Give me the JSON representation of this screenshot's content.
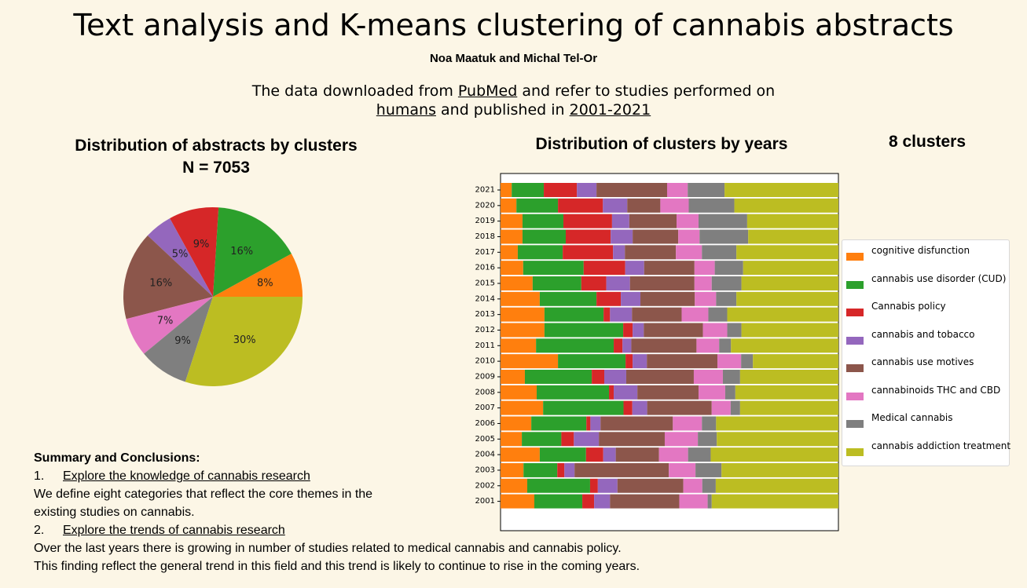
{
  "header": {
    "title": "Text analysis and K-means clustering of cannabis abstracts",
    "authors": "Noa Maatuk and Michal Tel-Or",
    "intro_prefix": "The data downloaded from ",
    "intro_link1": "PubMed",
    "intro_mid1": " and refer to studies performed on",
    "intro_link2": "humans",
    "intro_mid2": " and published in ",
    "intro_link3": "2001-2021"
  },
  "pie_panel": {
    "title": "Distribution of abstracts by clusters",
    "subtitle": "N = 7053"
  },
  "bar_panel": {
    "title": "Distribution of clusters by years",
    "clusters_label": "8 clusters"
  },
  "legend": {
    "items": [
      {
        "label": "cognitive disfunction",
        "color": "#ff7f0e"
      },
      {
        "label": "cannabis use disorder (CUD)",
        "color": "#2ca02c"
      },
      {
        "label": "Cannabis policy",
        "color": "#d62728"
      },
      {
        "label": "cannabis and tobacco",
        "color": "#9467bd"
      },
      {
        "label": "cannabis use motives",
        "color": "#8c564b"
      },
      {
        "label": "cannabinoids THC and CBD",
        "color": "#e377c2"
      },
      {
        "label": "Medical cannabis",
        "color": "#7f7f7f"
      },
      {
        "label": "cannabis addiction treatment",
        "color": "#bcbd22"
      }
    ]
  },
  "chart_data": [
    {
      "type": "pie",
      "start_angle_deg": 0,
      "direction": "counterclockwise",
      "slices": [
        {
          "label": "8%",
          "value": 8,
          "color": "#ff7f0e"
        },
        {
          "label": "16%",
          "value": 16,
          "color": "#2ca02c"
        },
        {
          "label": "9%",
          "value": 9,
          "color": "#d62728"
        },
        {
          "label": "5%",
          "value": 5,
          "color": "#9467bd"
        },
        {
          "label": "16%",
          "value": 16,
          "color": "#8c564b"
        },
        {
          "label": "7%",
          "value": 7,
          "color": "#e377c2"
        },
        {
          "label": "9%",
          "value": 9,
          "color": "#7f7f7f"
        },
        {
          "label": "30%",
          "value": 30,
          "color": "#bcbd22"
        }
      ]
    },
    {
      "type": "bar",
      "orientation": "horizontal",
      "stacked": true,
      "normalized": true,
      "categories": [
        "2021",
        "2020",
        "2019",
        "2018",
        "2017",
        "2016",
        "2015",
        "2014",
        "2013",
        "2012",
        "2011",
        "2010",
        "2009",
        "2008",
        "2007",
        "2006",
        "2005",
        "2004",
        "2003",
        "2002",
        "2001"
      ],
      "series": [
        {
          "name": "cognitive disfunction",
          "color": "#ff7f0e",
          "values": [
            3.3,
            4.7,
            6.5,
            6.5,
            5.1,
            6.7,
            9.5,
            11.6,
            13.0,
            13.0,
            10.5,
            17.0,
            7.2,
            10.7,
            12.6,
            9.1,
            6.3,
            11.6,
            6.8,
            7.9,
            10.0
          ]
        },
        {
          "name": "cannabis use disorder (CUD)",
          "color": "#2ca02c",
          "values": [
            9.5,
            12.3,
            12.1,
            12.8,
            13.3,
            17.9,
            14.4,
            16.8,
            17.5,
            23.3,
            23.0,
            20.0,
            19.8,
            21.4,
            23.8,
            16.3,
            11.7,
            13.7,
            10.0,
            18.6,
            14.2
          ]
        },
        {
          "name": "Cannabis policy",
          "color": "#d62728",
          "values": [
            9.8,
            13.3,
            14.4,
            13.3,
            14.9,
            12.3,
            7.4,
            7.2,
            1.9,
            2.8,
            2.6,
            2.1,
            3.7,
            1.4,
            2.6,
            1.2,
            3.7,
            5.1,
            2.1,
            2.3,
            3.5
          ]
        },
        {
          "name": "cannabis and tobacco",
          "color": "#9467bd",
          "values": [
            5.8,
            7.2,
            5.1,
            6.5,
            3.5,
            5.6,
            7.0,
            5.8,
            6.5,
            3.3,
            2.6,
            4.2,
            6.5,
            7.0,
            4.4,
            3.0,
            7.4,
            3.7,
            3.0,
            5.8,
            4.7
          ]
        },
        {
          "name": "cannabis use motives",
          "color": "#8c564b",
          "values": [
            20.9,
            9.8,
            14.0,
            13.5,
            15.1,
            14.9,
            19.1,
            16.1,
            14.7,
            17.5,
            19.3,
            20.9,
            20.0,
            18.1,
            19.1,
            21.4,
            19.5,
            12.8,
            27.9,
            19.5,
            20.5
          ]
        },
        {
          "name": "cannabinoids THC and CBD",
          "color": "#e377c2",
          "values": [
            6.1,
            8.4,
            6.5,
            6.3,
            7.7,
            6.0,
            5.1,
            6.3,
            7.9,
            7.2,
            6.7,
            7.0,
            8.6,
            7.9,
            5.6,
            8.6,
            9.8,
            8.6,
            7.9,
            5.6,
            8.4
          ]
        },
        {
          "name": "Medical cannabis",
          "color": "#7f7f7f",
          "values": [
            10.9,
            13.5,
            14.4,
            14.4,
            10.2,
            8.4,
            8.8,
            6.0,
            5.6,
            4.2,
            3.5,
            3.5,
            5.1,
            3.0,
            2.8,
            4.2,
            5.6,
            6.7,
            7.7,
            4.0,
            1.2
          ]
        },
        {
          "name": "cannabis addiction treatment",
          "color": "#bcbd22",
          "values": [
            33.7,
            30.8,
            27.0,
            26.7,
            30.2,
            28.2,
            28.7,
            30.2,
            32.9,
            28.7,
            31.8,
            25.3,
            29.1,
            30.5,
            29.1,
            36.2,
            36.0,
            37.8,
            34.6,
            36.3,
            37.5
          ]
        }
      ],
      "xlim": [
        0,
        100
      ]
    }
  ],
  "summary": {
    "heading": "Summary and Conclusions:",
    "item1_num": "1.",
    "item1_title": "Explore the knowledge of cannabis research",
    "item1_text_line1": "We define eight categories that reflect the core themes in the",
    "item1_text_line2": "existing studies on cannabis.",
    "item2_num": "2.",
    "item2_title": "Explore the trends of cannabis research",
    "item2_text_line1": "Over the last years there is growing in number of studies related to medical cannabis and cannabis policy.",
    "item2_text_line2": "This finding reflect the general trend in this field and this trend is likely to continue to rise in the coming years."
  }
}
